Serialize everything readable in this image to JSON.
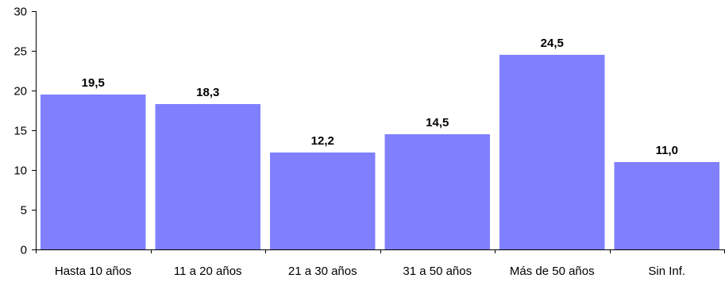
{
  "chart_data": {
    "type": "bar",
    "categories": [
      "Hasta 10 años",
      "11 a 20 años",
      "21 a 30 años",
      "31 a 50 años",
      "Más de 50 años",
      "Sin Inf."
    ],
    "values": [
      19.5,
      18.3,
      12.2,
      14.5,
      24.5,
      11.0
    ],
    "data_labels": [
      "19,5",
      "18,3",
      "12,2",
      "14,5",
      "24,5",
      "11,0"
    ],
    "title": "",
    "xlabel": "",
    "ylabel": "",
    "ylim": [
      0,
      30
    ],
    "yticks": [
      0,
      5,
      10,
      15,
      20,
      25,
      30
    ],
    "grid": false,
    "legend": "none",
    "bar_color": "#8080ff"
  }
}
